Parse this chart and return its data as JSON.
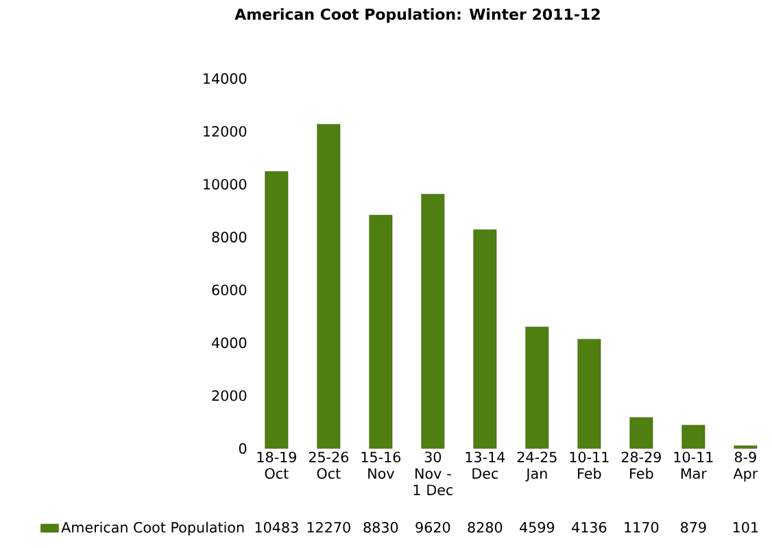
{
  "chart_data": {
    "type": "bar",
    "title": "American Coot Population: Winter 2011-12",
    "categories": [
      "18-19 Oct",
      "25-26 Oct",
      "15-16 Nov",
      "30 Nov - 1 Dec",
      "13-14 Dec",
      "24-25 Jan",
      "10-11 Feb",
      "28-29 Feb",
      "10-11 Mar",
      "8-9 Apr"
    ],
    "series": [
      {
        "name": "American Coot Population",
        "color": "#4f7f10",
        "values": [
          10483,
          12270,
          8830,
          9620,
          8280,
          4599,
          4136,
          1170,
          879,
          101
        ]
      }
    ],
    "ylim": [
      0,
      14000
    ],
    "yticks": [
      0,
      2000,
      4000,
      6000,
      8000,
      10000,
      12000,
      14000
    ],
    "data_labels": true,
    "legend": "bottom",
    "grid": false
  }
}
